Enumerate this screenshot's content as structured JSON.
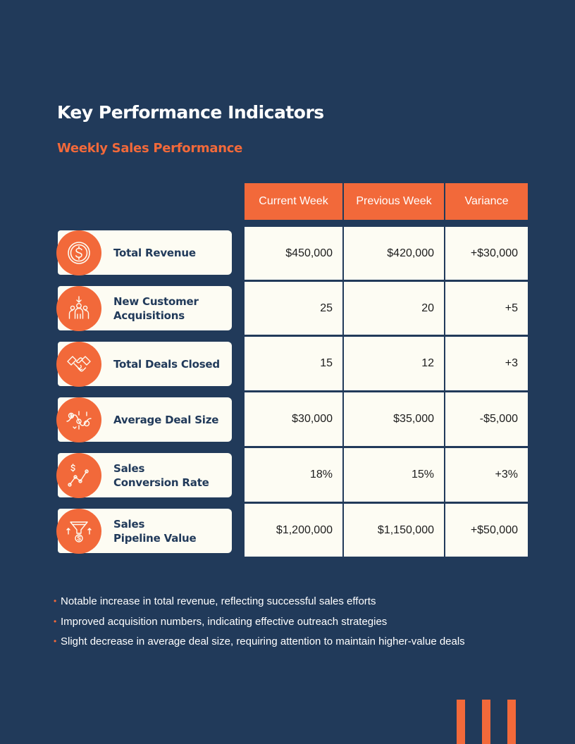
{
  "page": {
    "title": "Key Performance Indicators",
    "subtitle": "Weekly Sales Performance"
  },
  "colors": {
    "background": "#213a5a",
    "accent": "#f2693a",
    "card": "#fdfcf3",
    "navy_text": "#213a5a"
  },
  "table": {
    "headers": [
      "Current Week",
      "Previous Week",
      "Variance"
    ],
    "rows": [
      {
        "label": "Total Revenue",
        "icon": "dollar-coin-icon",
        "current": "$450,000",
        "previous": "$420,000",
        "variance": "+$30,000"
      },
      {
        "label": "New Customer\nAcquisitions",
        "icon": "customer-group-icon",
        "current": "25",
        "previous": "20",
        "variance": "+5"
      },
      {
        "label": "Total Deals Closed",
        "icon": "handshake-icon",
        "current": "15",
        "previous": "12",
        "variance": "+3"
      },
      {
        "label": "Average Deal Size",
        "icon": "price-trend-icon",
        "current": "$30,000",
        "previous": "$35,000",
        "variance": "-$5,000"
      },
      {
        "label": "Sales\nConversion Rate",
        "icon": "growth-chart-icon",
        "current": "18%",
        "previous": "15%",
        "variance": "+3%"
      },
      {
        "label": "Sales\nPipeline Value",
        "icon": "sales-funnel-icon",
        "current": "$1,200,000",
        "previous": "$1,150,000",
        "variance": "+$50,000"
      }
    ]
  },
  "notes": [
    "Notable increase in total revenue, reflecting successful sales efforts",
    "Improved acquisition numbers, indicating effective outreach strategies",
    "Slight decrease in average deal size, requiring attention to maintain higher-value deals"
  ]
}
